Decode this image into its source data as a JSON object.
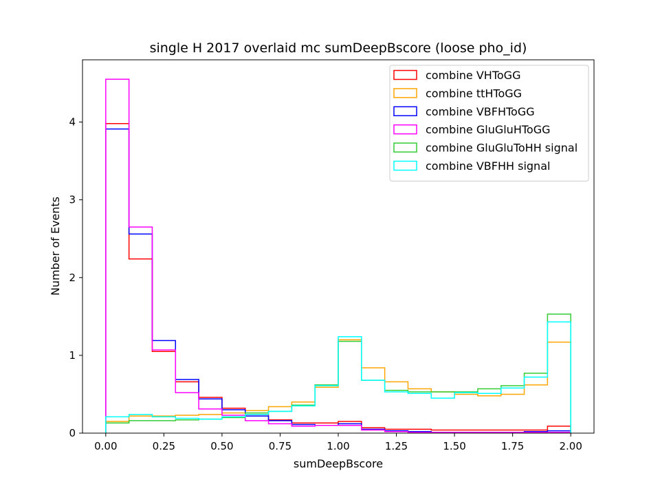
{
  "chart_data": {
    "type": "histogram",
    "title": "single H 2017 overlaid mc sumDeepBscore (loose pho_id)",
    "xlabel": "sumDeepBscore",
    "ylabel": "Number of Events",
    "xlim": [
      -0.1,
      2.1
    ],
    "ylim": [
      0,
      4.8
    ],
    "xticks": [
      0.0,
      0.25,
      0.5,
      0.75,
      1.0,
      1.25,
      1.5,
      1.75,
      2.0
    ],
    "xtick_labels": [
      "0.00",
      "0.25",
      "0.50",
      "0.75",
      "1.00",
      "1.25",
      "1.50",
      "1.75",
      "2.00"
    ],
    "yticks": [
      0,
      1,
      2,
      3,
      4
    ],
    "ytick_labels": [
      "0",
      "1",
      "2",
      "3",
      "4"
    ],
    "bin_edges": [
      0.0,
      0.1,
      0.2,
      0.3,
      0.4,
      0.5,
      0.6,
      0.7,
      0.8,
      0.9,
      1.0,
      1.1,
      1.2,
      1.3,
      1.4,
      1.5,
      1.6,
      1.7,
      1.8,
      1.9,
      2.0
    ],
    "legend_position": "top-right",
    "grid": false,
    "series": [
      {
        "name": "combine VHToGG",
        "color": "#ff0000",
        "values": [
          3.98,
          2.24,
          1.05,
          0.66,
          0.46,
          0.32,
          0.24,
          0.17,
          0.13,
          0.13,
          0.15,
          0.07,
          0.05,
          0.05,
          0.04,
          0.04,
          0.04,
          0.04,
          0.04,
          0.09
        ]
      },
      {
        "name": "combine ttHToGG",
        "color": "#ffa500",
        "values": [
          0.15,
          0.22,
          0.22,
          0.23,
          0.24,
          0.26,
          0.29,
          0.34,
          0.4,
          0.59,
          1.2,
          0.84,
          0.66,
          0.57,
          0.53,
          0.5,
          0.48,
          0.5,
          0.62,
          1.17
        ]
      },
      {
        "name": "combine VBFHToGG",
        "color": "#0000ff",
        "values": [
          3.91,
          2.56,
          1.19,
          0.69,
          0.44,
          0.3,
          0.22,
          0.16,
          0.11,
          0.1,
          0.12,
          0.05,
          0.03,
          0.02,
          0.01,
          0.01,
          0.01,
          0.01,
          0.02,
          0.03
        ]
      },
      {
        "name": "combine GluGluHToGG",
        "color": "#ff00ff",
        "values": [
          4.55,
          2.65,
          1.07,
          0.52,
          0.31,
          0.23,
          0.16,
          0.12,
          0.09,
          0.1,
          0.1,
          0.04,
          0.02,
          0.01,
          0.01,
          0.01,
          0.01,
          0.01,
          0.01,
          0.01
        ]
      },
      {
        "name": "combine GluGluToHH signal",
        "color": "#33cc33",
        "values": [
          0.13,
          0.16,
          0.16,
          0.17,
          0.18,
          0.2,
          0.26,
          0.28,
          0.36,
          0.62,
          1.18,
          0.68,
          0.55,
          0.53,
          0.53,
          0.53,
          0.57,
          0.61,
          0.77,
          1.53
        ]
      },
      {
        "name": "combine VBFHH signal",
        "color": "#00ffff",
        "values": [
          0.21,
          0.24,
          0.21,
          0.19,
          0.18,
          0.21,
          0.24,
          0.28,
          0.35,
          0.61,
          1.24,
          0.68,
          0.53,
          0.51,
          0.45,
          0.52,
          0.51,
          0.58,
          0.72,
          1.43
        ]
      }
    ]
  }
}
